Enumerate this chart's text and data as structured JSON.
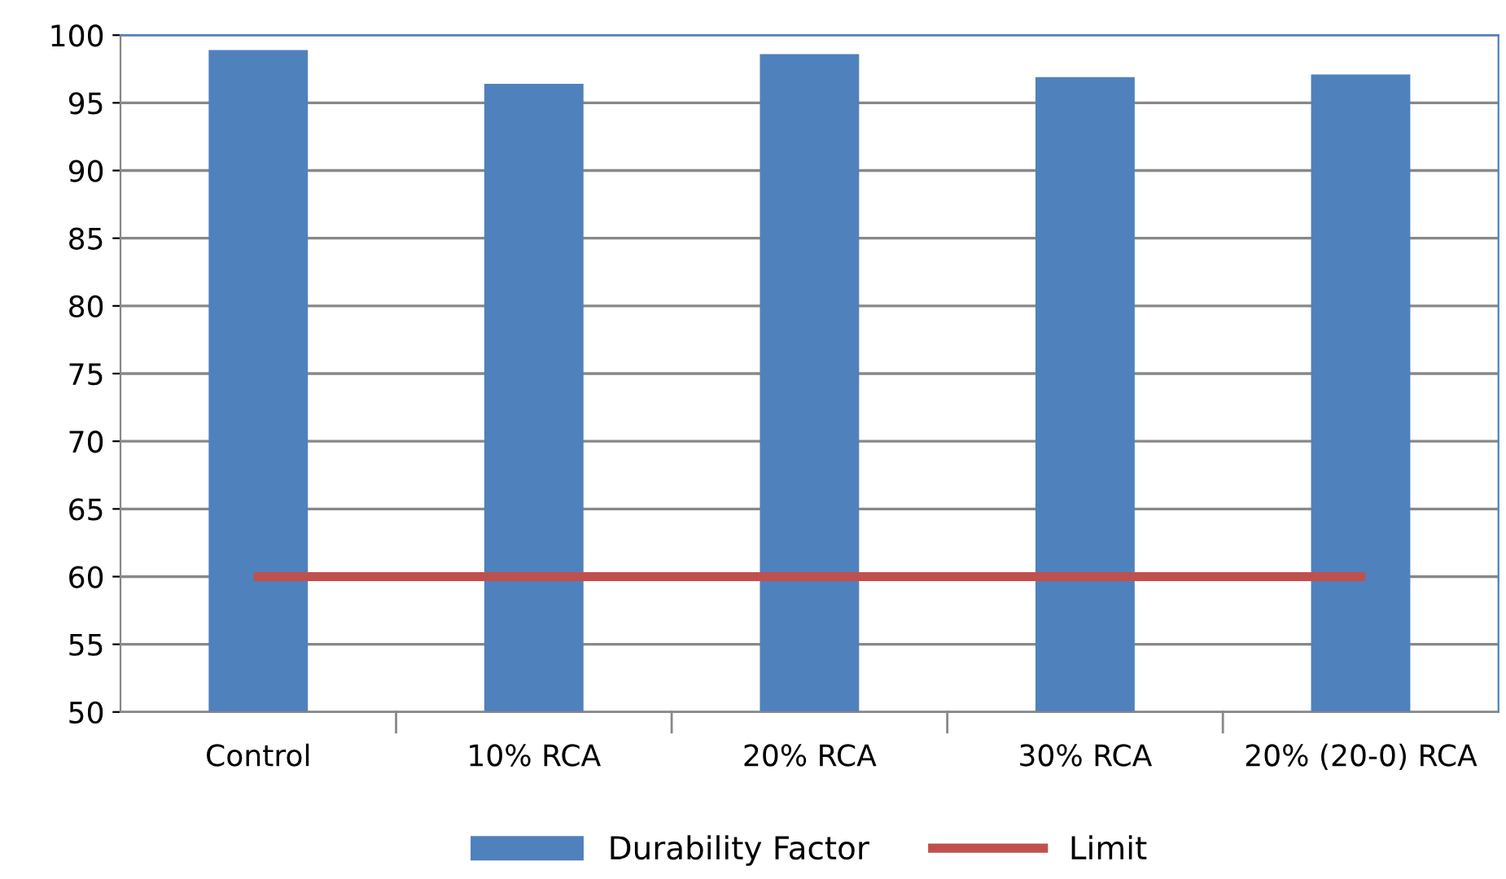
{
  "chart_data": {
    "type": "bar",
    "categories": [
      "Control",
      "10% RCA",
      "20% RCA",
      "30% RCA",
      "20% (20-0) RCA"
    ],
    "series": [
      {
        "name": "Durability Factor",
        "color": "#4f81bd",
        "values": [
          98.9,
          96.4,
          98.6,
          96.9,
          97.1
        ]
      },
      {
        "name": "Limit",
        "type": "line",
        "color": "#c0504d",
        "values": [
          60,
          60,
          60,
          60,
          60
        ]
      }
    ],
    "ylim": [
      50,
      100
    ],
    "yticks": [
      50,
      55,
      60,
      65,
      70,
      75,
      80,
      85,
      90,
      95,
      100
    ],
    "grid": "y",
    "legend": "bottom",
    "marker": "none",
    "line_style": "solid"
  }
}
